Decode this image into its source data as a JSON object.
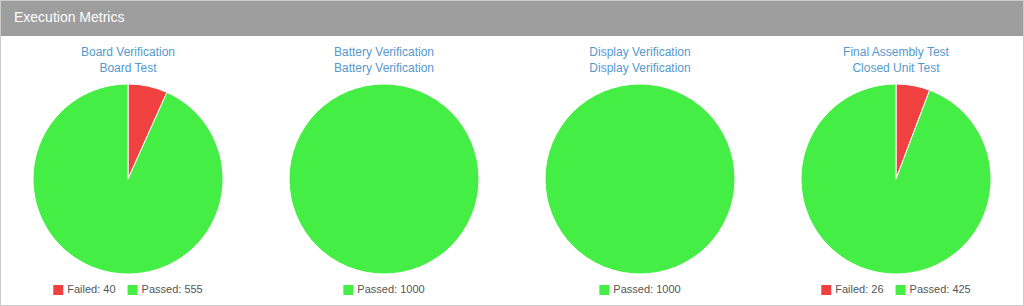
{
  "title": "Execution Metrics",
  "chart_data": [
    {
      "type": "pie",
      "title": "Board Verification",
      "subtitle": "Board Test",
      "categories": [
        "Failed: 40",
        "Passed: 555"
      ],
      "values": [
        40,
        555
      ],
      "colors": [
        "#f04040",
        "#44ee44"
      ],
      "legend": "bottom"
    },
    {
      "type": "pie",
      "title": "Battery Verification",
      "subtitle": "Battery Verification",
      "categories": [
        "Passed: 1000"
      ],
      "values": [
        1000
      ],
      "colors": [
        "#44ee44"
      ],
      "legend": "bottom"
    },
    {
      "type": "pie",
      "title": "Display Verification",
      "subtitle": "Display Verification",
      "categories": [
        "Passed: 1000"
      ],
      "values": [
        1000
      ],
      "colors": [
        "#44ee44"
      ],
      "legend": "bottom"
    },
    {
      "type": "pie",
      "title": "Final Assembly Test",
      "subtitle": "Closed Unit Test",
      "categories": [
        "Failed: 26",
        "Passed: 425"
      ],
      "values": [
        26,
        425
      ],
      "colors": [
        "#f04040",
        "#44ee44"
      ],
      "legend": "bottom"
    }
  ]
}
